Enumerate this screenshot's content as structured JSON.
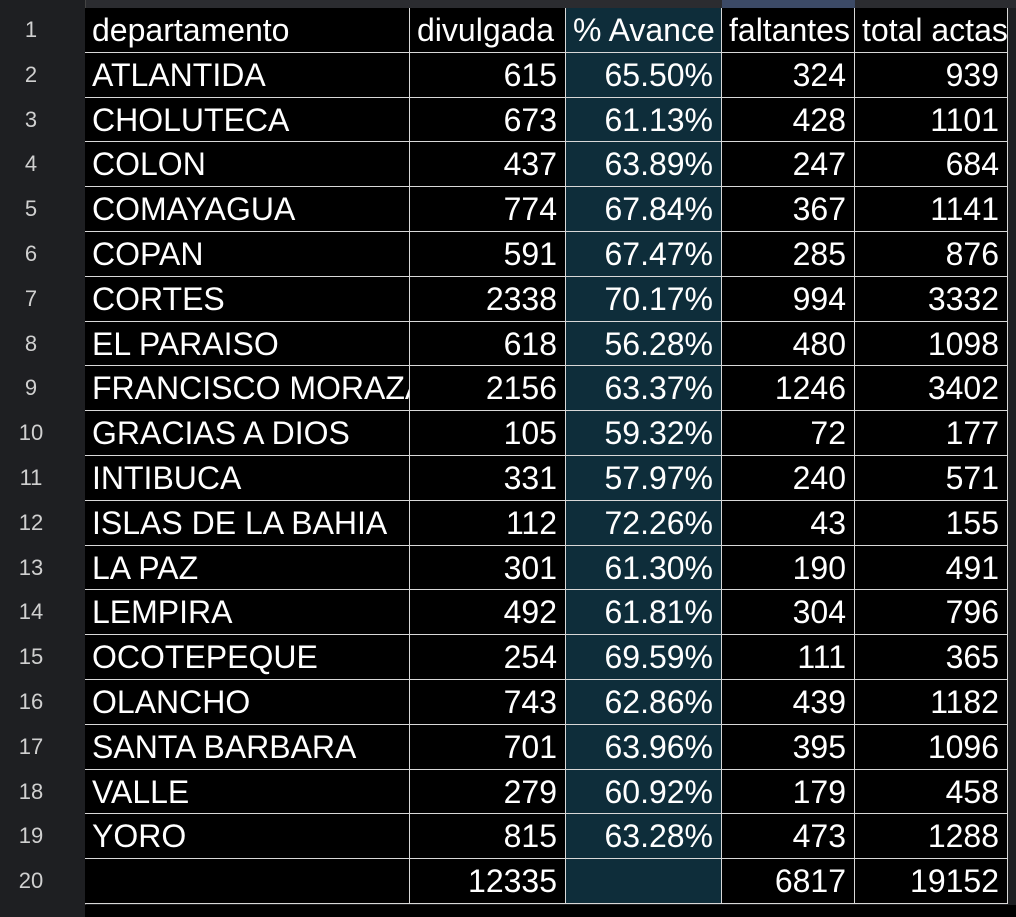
{
  "row_numbers": [
    "1",
    "2",
    "3",
    "4",
    "5",
    "6",
    "7",
    "8",
    "9",
    "10",
    "11",
    "12",
    "13",
    "14",
    "15",
    "16",
    "17",
    "18",
    "19",
    "20"
  ],
  "table": {
    "header": [
      "departamento",
      "divulgada",
      "% Avance",
      "faltantes",
      "total actas"
    ],
    "rows": [
      [
        "ATLANTIDA",
        "615",
        "65.50%",
        "324",
        "939"
      ],
      [
        "CHOLUTECA",
        "673",
        "61.13%",
        "428",
        "1101"
      ],
      [
        "COLON",
        "437",
        "63.89%",
        "247",
        "684"
      ],
      [
        "COMAYAGUA",
        "774",
        "67.84%",
        "367",
        "1141"
      ],
      [
        "COPAN",
        "591",
        "67.47%",
        "285",
        "876"
      ],
      [
        "CORTES",
        "2338",
        "70.17%",
        "994",
        "3332"
      ],
      [
        "EL PARAISO",
        "618",
        "56.28%",
        "480",
        "1098"
      ],
      [
        "FRANCISCO MORAZAN",
        "2156",
        "63.37%",
        "1246",
        "3402"
      ],
      [
        "GRACIAS A DIOS",
        "105",
        "59.32%",
        "72",
        "177"
      ],
      [
        "INTIBUCA",
        "331",
        "57.97%",
        "240",
        "571"
      ],
      [
        "ISLAS DE LA BAHIA",
        "112",
        "72.26%",
        "43",
        "155"
      ],
      [
        "LA PAZ",
        "301",
        "61.30%",
        "190",
        "491"
      ],
      [
        "LEMPIRA",
        "492",
        "61.81%",
        "304",
        "796"
      ],
      [
        "OCOTEPEQUE",
        "254",
        "69.59%",
        "111",
        "365"
      ],
      [
        "OLANCHO",
        "743",
        "62.86%",
        "439",
        "1182"
      ],
      [
        "SANTA BARBARA",
        "701",
        "63.96%",
        "395",
        "1096"
      ],
      [
        "VALLE",
        "279",
        "60.92%",
        "179",
        "458"
      ],
      [
        "YORO",
        "815",
        "63.28%",
        "473",
        "1288"
      ]
    ],
    "totals": {
      "divulgada": "12335",
      "faltantes": "6817",
      "total_actas": "19152"
    }
  }
}
